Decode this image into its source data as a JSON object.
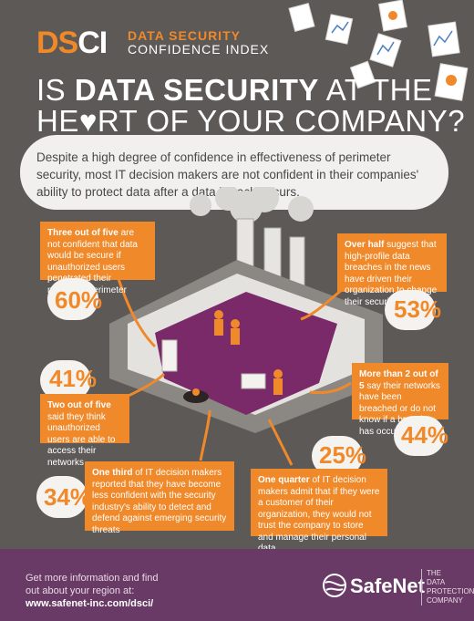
{
  "logo": {
    "ds": "DS",
    "ci": "CI",
    "line1": "DATA SECURITY",
    "line2": "CONFIDENCE INDEX"
  },
  "headline": {
    "line1_prefix": "IS ",
    "line1_bold": "DATA SECURITY",
    "line1_suffix": " AT THE",
    "line2": "HE♥RT OF YOUR COMPANY?"
  },
  "intro": "Despite a high degree of confidence in effectiveness of perimeter security, most IT decision makers are not confident in their companies' ability to protect data after a data breach occurs.",
  "stats": [
    {
      "pct": "60%",
      "lead": "Three out of five",
      "text": " are not confident that data would be secure if unauthorized users penetrated their network's perimeter security"
    },
    {
      "pct": "53%",
      "lead": "Over half",
      "text": " suggest that high-profile data breaches in the news have driven their organization to change their security strategy"
    },
    {
      "pct": "41%",
      "lead": "Two out of five",
      "text": " said they think unauthorized users are able to access their networks"
    },
    {
      "pct": "44%",
      "lead": "More than 2 out of 5",
      "text": " say their networks have been breached or do not know if a breach has occurred"
    },
    {
      "pct": "34%",
      "lead": "One third",
      "text": " of IT decision makers reported that they have become less confident with the security industry's ability to detect and defend against emerging security threats"
    },
    {
      "pct": "25%",
      "lead": "One quarter",
      "text": " of IT decision makers admit that if they were a customer of their organization, they would not trust the company to store and manage their personal data"
    }
  ],
  "footer": {
    "line1": "Get more information and find",
    "line2": "out about your region at:",
    "link": "www.safenet-inc.com/dsci/",
    "brand": "SafeNet",
    "tag1": "THE",
    "tag2": "DATA",
    "tag3": "PROTECTION",
    "tag4": "COMPANY"
  },
  "colors": {
    "accent": "#f0892a",
    "background": "#5c5956",
    "footer": "#6a3a66",
    "room": "#7a2a68"
  }
}
